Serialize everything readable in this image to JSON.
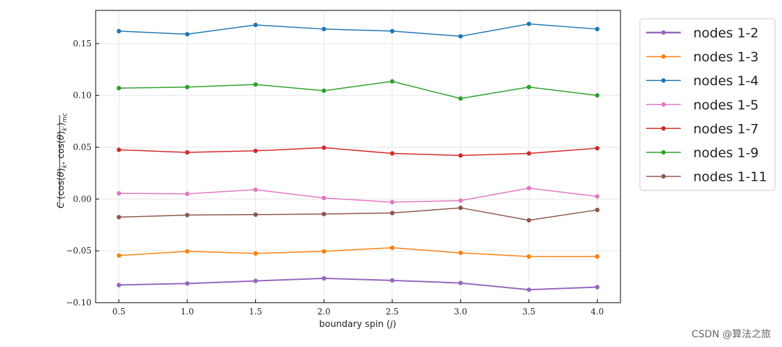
{
  "chart_data": {
    "type": "line",
    "title": "",
    "xlabel": "boundary spin (j)",
    "ylabel": "C(cos(θ)k, cos(θ)k′)mc",
    "x": [
      0.5,
      1.0,
      1.5,
      2.0,
      2.5,
      3.0,
      3.5,
      4.0
    ],
    "xlim": [
      0.33,
      4.17
    ],
    "ylim": [
      -0.1,
      0.182
    ],
    "xticks": [
      "0.5",
      "1.0",
      "1.5",
      "2.0",
      "2.5",
      "3.0",
      "3.5",
      "4.0"
    ],
    "yticks": [
      "−0.10",
      "−0.05",
      "0.00",
      "0.05",
      "0.10",
      "0.15"
    ],
    "grid": true,
    "legend_position": "outside-right-top",
    "series": [
      {
        "name": "nodes 1-2",
        "color": "#9467bd",
        "values": [
          -0.083,
          -0.0815,
          -0.079,
          -0.0765,
          -0.0785,
          -0.081,
          -0.0875,
          -0.085
        ]
      },
      {
        "name": "nodes 1-3",
        "color": "#ff7f0e",
        "values": [
          -0.0545,
          -0.0505,
          -0.0525,
          -0.0505,
          -0.047,
          -0.052,
          -0.0555,
          -0.0555
        ]
      },
      {
        "name": "nodes 1-4",
        "color": "#1f77b4",
        "values": [
          0.162,
          0.159,
          0.168,
          0.164,
          0.162,
          0.157,
          0.169,
          0.164
        ]
      },
      {
        "name": "nodes 1-5",
        "color": "#e377c2",
        "values": [
          0.0055,
          0.005,
          0.009,
          0.001,
          -0.003,
          -0.0015,
          0.0105,
          0.0025
        ]
      },
      {
        "name": "nodes 1-7",
        "color": "#d62728",
        "values": [
          0.0475,
          0.045,
          0.0465,
          0.0495,
          0.044,
          0.042,
          0.044,
          0.049
        ]
      },
      {
        "name": "nodes 1-9",
        "color": "#2ca02c",
        "values": [
          0.107,
          0.108,
          0.1105,
          0.1045,
          0.1135,
          0.097,
          0.108,
          0.1
        ]
      },
      {
        "name": "nodes 1-11",
        "color": "#8c564b",
        "values": [
          -0.0175,
          -0.0155,
          -0.015,
          -0.0145,
          -0.0135,
          -0.0085,
          -0.0205,
          -0.0105
        ]
      }
    ]
  },
  "watermark": "CSDN @算法之旅"
}
